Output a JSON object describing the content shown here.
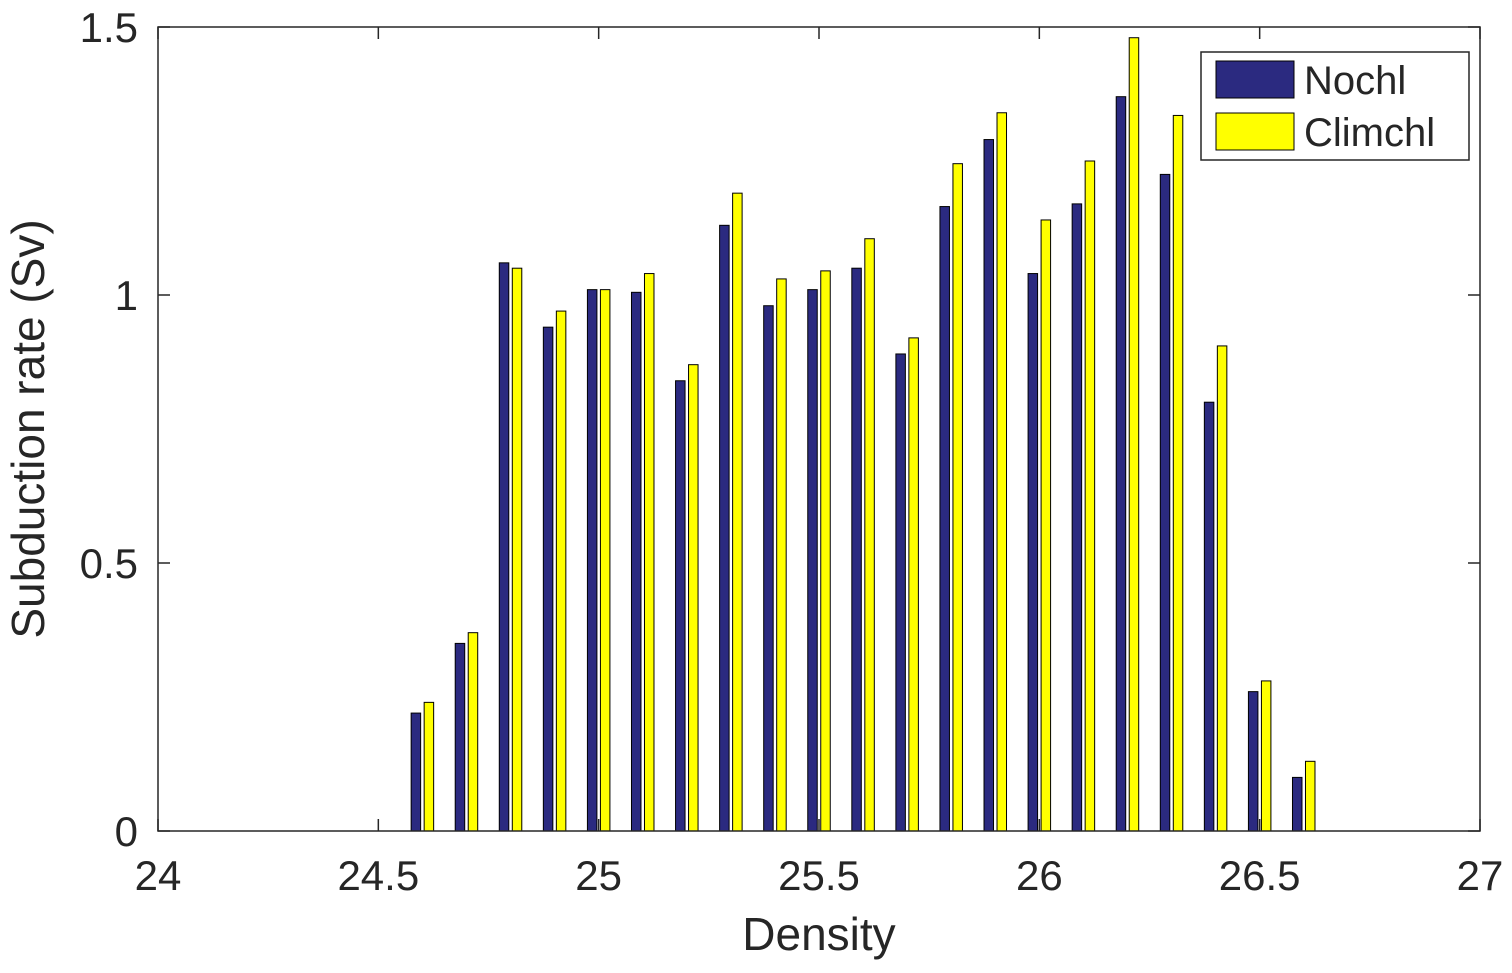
{
  "chart_data": {
    "type": "bar",
    "title": "",
    "xlabel": "Density",
    "ylabel": "Subduction rate (Sv)",
    "xlim": [
      24,
      27
    ],
    "ylim": [
      0,
      1.5
    ],
    "x_ticks": [
      "24",
      "24.5",
      "25",
      "25.5",
      "26",
      "26.5",
      "27"
    ],
    "y_ticks": [
      "0",
      "0.5",
      "1",
      "1.5"
    ],
    "grid": false,
    "legend_position": "top-right",
    "x": [
      24.1,
      24.2,
      24.3,
      24.4,
      24.5,
      24.6,
      24.7,
      24.8,
      24.9,
      25.0,
      25.1,
      25.2,
      25.3,
      25.4,
      25.5,
      25.6,
      25.7,
      25.8,
      25.9,
      26.0,
      26.1,
      26.2,
      26.3,
      26.4,
      26.5,
      26.6,
      26.7,
      26.8,
      26.9
    ],
    "series": [
      {
        "name": "Nochl",
        "color": "#2b2a80",
        "values": [
          0,
          0,
          0,
          0,
          0,
          0.22,
          0.35,
          1.06,
          0.94,
          1.01,
          1.005,
          0.84,
          1.13,
          0.98,
          1.01,
          1.05,
          0.89,
          1.165,
          1.29,
          1.04,
          1.17,
          1.37,
          1.225,
          0.8,
          0.26,
          0.1,
          0,
          0,
          0
        ]
      },
      {
        "name": "Climchl",
        "color": "#ffff00",
        "values": [
          0,
          0,
          0,
          0,
          0,
          0.24,
          0.37,
          1.05,
          0.97,
          1.01,
          1.04,
          0.87,
          1.19,
          1.03,
          1.045,
          1.105,
          0.92,
          1.245,
          1.34,
          1.14,
          1.25,
          1.48,
          1.335,
          0.905,
          0.28,
          0.13,
          0,
          0,
          0
        ]
      }
    ]
  }
}
